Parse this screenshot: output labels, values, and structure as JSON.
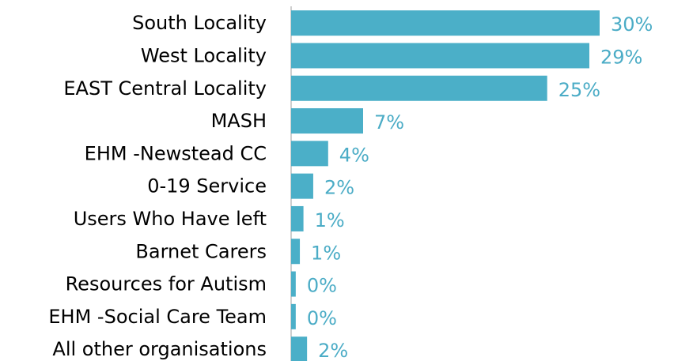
{
  "chart_data": {
    "type": "bar",
    "orientation": "horizontal",
    "color": "#4bafc8",
    "categories": [
      "South Locality",
      "West Locality",
      "EAST Central Locality",
      "MASH",
      "EHM -Newstead CC",
      "0-19 Service",
      "Users Who Have left",
      "Barnet Carers",
      "Resources for Autism",
      "EHM -Social Care Team",
      "All other organisations"
    ],
    "values": [
      30,
      29,
      24.9,
      7.0,
      3.6,
      2.15,
      1.2,
      0.85,
      0.45,
      0.45,
      1.55
    ],
    "value_labels": [
      "30%",
      "29%",
      "25%",
      "7%",
      "4%",
      "2%",
      "1%",
      "1%",
      "0%",
      "0%",
      "2%"
    ]
  }
}
